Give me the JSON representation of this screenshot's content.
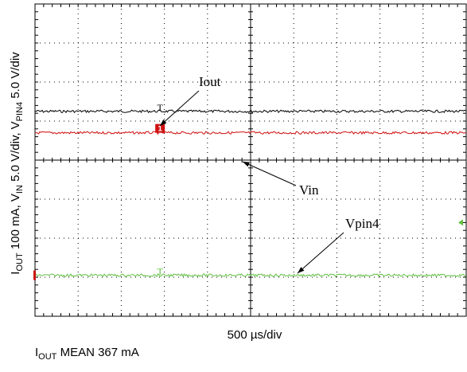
{
  "chart_data": {
    "type": "line",
    "ylabel_parts": {
      "i_out": "I",
      "i_out_sub": "OUT",
      "i_scale": " 100 mA, V",
      "v_in_sub": "IN",
      "v_in_scale": " 5.0 V/div, V",
      "v_pin4_sub": "PIN4",
      "v_pin4_scale": " 5.0 V/div"
    },
    "xlabel": "500 µs/div",
    "footer": {
      "prefix": "I",
      "sub": "OUT",
      "text": " MEAN 367 mA"
    },
    "grid": {
      "divisions_x": 10,
      "divisions_y": 8
    },
    "series": [
      {
        "name": "Iout",
        "color": "#000000",
        "level_div": 5.25,
        "marker": "T",
        "marker_x_div": 2.9
      },
      {
        "name": "Vin",
        "color": "#d01010",
        "level_div": 4.7,
        "marker": "1",
        "marker_x_div": 2.9
      },
      {
        "name": "Vpin4",
        "color": "#60c040",
        "level_div": 1.05,
        "marker": "T",
        "marker_x_div": 2.9
      }
    ],
    "annotations": [
      {
        "text": "Iout",
        "series": "Iout"
      },
      {
        "text": "Vin",
        "series": "Vin"
      },
      {
        "text": "Vpin4",
        "series": "Vpin4"
      }
    ],
    "colors": {
      "grid": "#000000",
      "background": "#ffffff",
      "trigger_marker": "#60c040"
    }
  }
}
